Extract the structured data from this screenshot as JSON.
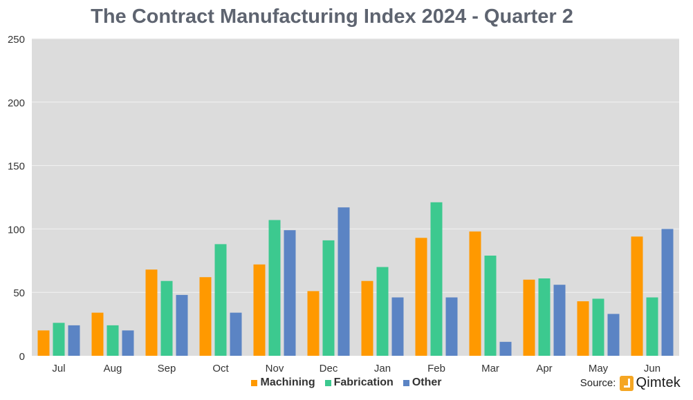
{
  "chart_data": {
    "type": "bar",
    "title": "The Contract Manufacturing Index 2024 - Quarter 2",
    "xlabel": "",
    "ylabel": "",
    "ylim": [
      0,
      250
    ],
    "yticks": [
      "0",
      "50",
      "100",
      "150",
      "200",
      "250"
    ],
    "categories": [
      "Jul",
      "Aug",
      "Sep",
      "Oct",
      "Nov",
      "Dec",
      "Jan",
      "Feb",
      "Mar",
      "Apr",
      "May",
      "Jun"
    ],
    "series": [
      {
        "name": "Machining",
        "color": "#ff9900",
        "values": [
          20,
          34,
          68,
          62,
          72,
          51,
          59,
          93,
          98,
          60,
          43,
          94
        ]
      },
      {
        "name": "Fabrication",
        "color": "#3cc98f",
        "values": [
          26,
          24,
          59,
          88,
          107,
          91,
          70,
          121,
          79,
          61,
          45,
          46
        ]
      },
      {
        "name": "Other",
        "color": "#5b84c4",
        "values": [
          24,
          20,
          48,
          34,
          99,
          117,
          46,
          46,
          11,
          56,
          33,
          100
        ]
      }
    ],
    "grid": true,
    "legend_position": "bottom",
    "plot_background": "#dcdcdc"
  },
  "source": {
    "label": "Source:",
    "brand": "Qimtek",
    "logo_icon": "qimtek-logo-icon"
  }
}
